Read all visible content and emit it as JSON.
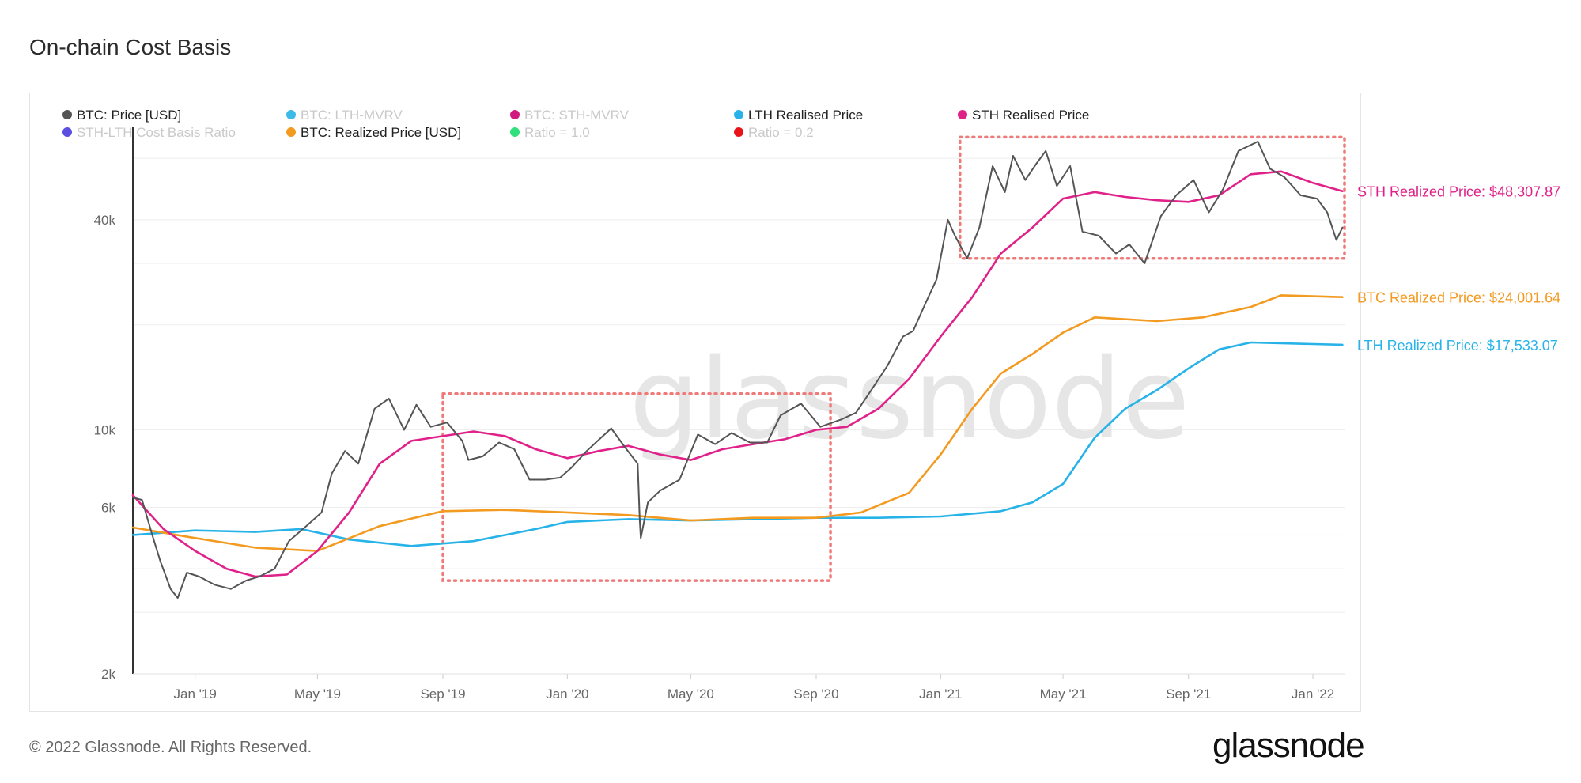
{
  "page": {
    "title": "On-chain Cost Basis",
    "footer": "© 2022 Glassnode. All Rights Reserved.",
    "brand": "glassnode",
    "watermark": "glassnode"
  },
  "chart_data": {
    "type": "line",
    "title": "On-chain Cost Basis",
    "y_scale": "log",
    "ylim": [
      2000,
      80000
    ],
    "y_ticks": [
      {
        "value": 2000,
        "label": "2k"
      },
      {
        "value": 6000,
        "label": "6k"
      },
      {
        "value": 10000,
        "label": "10k"
      },
      {
        "value": 40000,
        "label": "40k"
      }
    ],
    "xlim": [
      "2018-11-01",
      "2022-02-01"
    ],
    "x_ticks": [
      {
        "date": "2019-01-01",
        "label": "Jan '19"
      },
      {
        "date": "2019-05-01",
        "label": "May '19"
      },
      {
        "date": "2019-09-01",
        "label": "Sep '19"
      },
      {
        "date": "2020-01-01",
        "label": "Jan '20"
      },
      {
        "date": "2020-05-01",
        "label": "May '20"
      },
      {
        "date": "2020-09-01",
        "label": "Sep '20"
      },
      {
        "date": "2021-01-01",
        "label": "Jan '21"
      },
      {
        "date": "2021-05-01",
        "label": "May '21"
      },
      {
        "date": "2021-09-01",
        "label": "Sep '21"
      },
      {
        "date": "2022-01-01",
        "label": "Jan '22"
      }
    ],
    "legend_position": "top-left",
    "legend": [
      {
        "label": "BTC: Price [USD]",
        "color": "#555555",
        "active": true
      },
      {
        "label": "BTC: LTH-MVRV",
        "color": "#3bbbe6",
        "active": false
      },
      {
        "label": "BTC: STH-MVRV",
        "color": "#d11a80",
        "active": false
      },
      {
        "label": "LTH Realised Price",
        "color": "#27b3e8",
        "active": true
      },
      {
        "label": "STH Realised Price",
        "color": "#e0218a",
        "active": true
      },
      {
        "label": "STH-LTH Cost Basis Ratio",
        "color": "#5b4fe0",
        "active": false
      },
      {
        "label": "BTC: Realized Price [USD]",
        "color": "#f39a21",
        "active": true
      },
      {
        "label": "Ratio = 1.0",
        "color": "#2fe07c",
        "active": false
      },
      {
        "label": "Ratio = 0.2",
        "color": "#e8141a",
        "active": false
      }
    ],
    "series": [
      {
        "name": "BTC: Price [USD]",
        "color": "#555555",
        "x": [
          "2018-11-01",
          "2018-11-10",
          "2018-11-20",
          "2018-11-28",
          "2018-12-08",
          "2018-12-15",
          "2018-12-24",
          "2019-01-05",
          "2019-01-20",
          "2019-02-05",
          "2019-02-20",
          "2019-03-05",
          "2019-03-20",
          "2019-04-03",
          "2019-04-20",
          "2019-05-05",
          "2019-05-15",
          "2019-05-28",
          "2019-06-10",
          "2019-06-26",
          "2019-07-10",
          "2019-07-25",
          "2019-08-06",
          "2019-08-20",
          "2019-09-05",
          "2019-09-20",
          "2019-09-26",
          "2019-10-10",
          "2019-10-26",
          "2019-11-10",
          "2019-11-25",
          "2019-12-10",
          "2019-12-25",
          "2020-01-05",
          "2020-01-20",
          "2020-02-13",
          "2020-02-28",
          "2020-03-10",
          "2020-03-12",
          "2020-03-13",
          "2020-03-20",
          "2020-04-01",
          "2020-04-20",
          "2020-05-08",
          "2020-05-25",
          "2020-06-10",
          "2020-06-28",
          "2020-07-15",
          "2020-07-28",
          "2020-08-17",
          "2020-09-05",
          "2020-09-25",
          "2020-10-10",
          "2020-10-25",
          "2020-11-10",
          "2020-11-25",
          "2020-12-05",
          "2020-12-17",
          "2020-12-28",
          "2021-01-08",
          "2021-01-15",
          "2021-01-27",
          "2021-02-08",
          "2021-02-21",
          "2021-03-05",
          "2021-03-13",
          "2021-03-25",
          "2021-04-05",
          "2021-04-14",
          "2021-04-25",
          "2021-05-08",
          "2021-05-20",
          "2021-06-05",
          "2021-06-22",
          "2021-07-05",
          "2021-07-20",
          "2021-08-05",
          "2021-08-20",
          "2021-09-06",
          "2021-09-21",
          "2021-10-05",
          "2021-10-20",
          "2021-11-08",
          "2021-11-20",
          "2021-12-04",
          "2021-12-20",
          "2022-01-05",
          "2022-01-15",
          "2022-01-24",
          "2022-01-30"
        ],
        "y": [
          6400,
          6300,
          5000,
          4200,
          3500,
          3300,
          3900,
          3800,
          3600,
          3500,
          3700,
          3800,
          4000,
          4800,
          5300,
          5800,
          7500,
          8700,
          8000,
          11500,
          12300,
          10000,
          11800,
          10200,
          10500,
          9300,
          8200,
          8400,
          9200,
          8800,
          7200,
          7200,
          7300,
          7800,
          8700,
          10100,
          8800,
          8000,
          5500,
          4900,
          6200,
          6700,
          7200,
          9700,
          9100,
          9800,
          9200,
          9200,
          11000,
          11900,
          10200,
          10700,
          11200,
          13000,
          15300,
          18500,
          19200,
          23000,
          27000,
          40000,
          36000,
          31000,
          38000,
          57000,
          48000,
          61000,
          52000,
          58000,
          63000,
          50000,
          57000,
          37000,
          36000,
          32000,
          34000,
          30000,
          41000,
          47000,
          52000,
          42000,
          49000,
          63000,
          67000,
          56000,
          53000,
          47000,
          46000,
          42000,
          35000,
          38000
        ]
      },
      {
        "name": "STH Realised Price",
        "color": "#e0218a",
        "x": [
          "2018-11-01",
          "2018-12-01",
          "2019-01-01",
          "2019-02-01",
          "2019-03-01",
          "2019-04-01",
          "2019-05-01",
          "2019-06-01",
          "2019-07-01",
          "2019-08-01",
          "2019-09-01",
          "2019-10-01",
          "2019-11-01",
          "2019-12-01",
          "2020-01-01",
          "2020-02-01",
          "2020-03-01",
          "2020-04-01",
          "2020-05-01",
          "2020-06-01",
          "2020-07-01",
          "2020-08-01",
          "2020-09-01",
          "2020-10-01",
          "2020-11-01",
          "2020-12-01",
          "2021-01-01",
          "2021-02-01",
          "2021-03-01",
          "2021-04-01",
          "2021-05-01",
          "2021-06-01",
          "2021-07-01",
          "2021-08-01",
          "2021-09-01",
          "2021-10-01",
          "2021-11-01",
          "2021-12-01",
          "2022-01-01",
          "2022-01-30"
        ],
        "y": [
          6500,
          5200,
          4500,
          4000,
          3800,
          3850,
          4500,
          5800,
          8000,
          9300,
          9600,
          9900,
          9600,
          8800,
          8300,
          8700,
          9000,
          8500,
          8200,
          8800,
          9100,
          9400,
          10000,
          10200,
          11500,
          14000,
          18500,
          24000,
          32000,
          38000,
          46000,
          48000,
          46500,
          45500,
          45000,
          47000,
          54000,
          55000,
          51000,
          48307.87
        ]
      },
      {
        "name": "BTC: Realized Price [USD]",
        "color": "#f39a21",
        "x": [
          "2018-11-01",
          "2019-01-01",
          "2019-03-01",
          "2019-05-01",
          "2019-07-01",
          "2019-09-01",
          "2019-11-01",
          "2020-01-01",
          "2020-03-01",
          "2020-05-01",
          "2020-07-01",
          "2020-09-01",
          "2020-10-15",
          "2020-12-01",
          "2021-01-01",
          "2021-02-01",
          "2021-03-01",
          "2021-04-01",
          "2021-05-01",
          "2021-06-01",
          "2021-08-01",
          "2021-09-15",
          "2021-11-01",
          "2021-12-01",
          "2022-01-30"
        ],
        "y": [
          5250,
          4900,
          4600,
          4500,
          5300,
          5850,
          5900,
          5800,
          5700,
          5500,
          5600,
          5600,
          5800,
          6600,
          8500,
          11500,
          14500,
          16500,
          19000,
          21000,
          20500,
          21000,
          22500,
          24300,
          24001.64
        ]
      },
      {
        "name": "LTH Realised Price",
        "color": "#27b3e8",
        "x": [
          "2018-11-01",
          "2019-01-01",
          "2019-03-01",
          "2019-04-15",
          "2019-06-01",
          "2019-08-01",
          "2019-10-01",
          "2019-12-01",
          "2020-01-01",
          "2020-03-01",
          "2020-05-01",
          "2020-07-01",
          "2020-09-01",
          "2020-11-01",
          "2021-01-01",
          "2021-03-01",
          "2021-04-01",
          "2021-05-01",
          "2021-06-01",
          "2021-07-01",
          "2021-08-01",
          "2021-09-01",
          "2021-10-01",
          "2021-11-01",
          "2022-01-30"
        ],
        "y": [
          5000,
          5150,
          5100,
          5200,
          4850,
          4650,
          4800,
          5200,
          5450,
          5550,
          5500,
          5550,
          5600,
          5600,
          5650,
          5850,
          6200,
          7000,
          9500,
          11500,
          13000,
          15000,
          17000,
          17800,
          17533.07
        ]
      }
    ],
    "annotations": [
      {
        "text": "STH Realized Price: $48,307.87",
        "color": "#e0218a",
        "value": 48307.87
      },
      {
        "text": "BTC Realized Price: $24,001.64",
        "color": "#f39a21",
        "value": 24001.64
      },
      {
        "text": "LTH Realized Price: $17,533.07",
        "color": "#27b3e8",
        "value": 17533.07
      }
    ],
    "highlight_boxes": [
      {
        "x0": "2019-09-01",
        "x1": "2020-09-15",
        "y0": 3700,
        "y1": 12700,
        "color": "#ef7a7a"
      },
      {
        "x0": "2021-01-20",
        "x1": "2022-02-01",
        "y0": 31000,
        "y1": 69000,
        "color": "#ef7a7a"
      }
    ]
  }
}
